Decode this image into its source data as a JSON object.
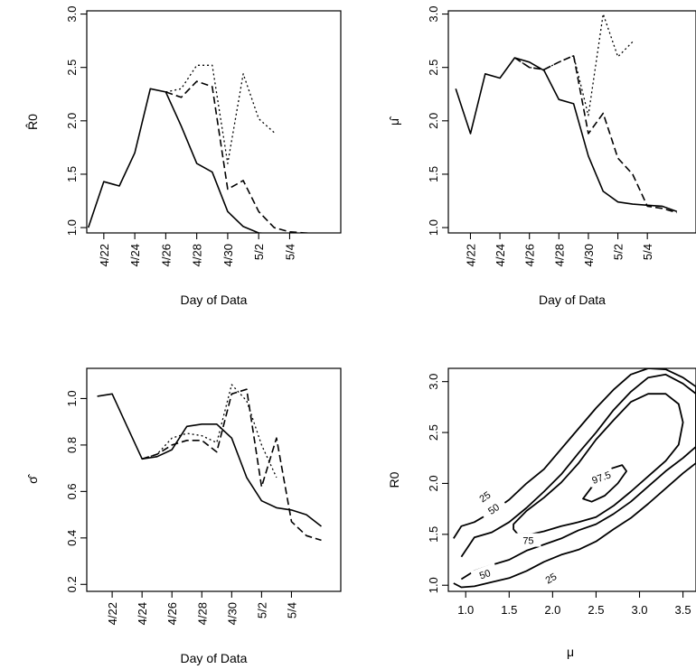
{
  "chart_data": [
    {
      "type": "line",
      "panel": "top-left",
      "ylabel": "R̂0",
      "xlabel": "Day of Data",
      "x_tick_labels": [
        "4/22",
        "4/24",
        "4/26",
        "4/28",
        "4/30",
        "5/2",
        "5/4"
      ],
      "x_tick_values": [
        1,
        3,
        5,
        7,
        9,
        11,
        13
      ],
      "y_ticks": [
        "1.0",
        "1.5",
        "2.0",
        "2.5",
        "3.0"
      ],
      "y_tick_values": [
        1.0,
        1.5,
        2.0,
        2.5,
        3.0
      ],
      "xlim": [
        -0.1,
        16.3
      ],
      "ylim": [
        0.95,
        3.03
      ],
      "series": [
        {
          "style": "solid",
          "x": [
            0,
            1,
            2,
            3,
            4,
            5,
            6,
            7,
            8,
            9,
            10,
            11,
            12,
            13,
            14,
            15
          ],
          "y": [
            1.0,
            1.43,
            1.39,
            1.7,
            2.3,
            2.27,
            1.95,
            1.6,
            1.52,
            1.15,
            1.01,
            0.95,
            0.94,
            0.94,
            0.94,
            0.94
          ]
        },
        {
          "style": "dashed",
          "x": [
            5,
            6,
            7,
            8,
            9,
            10,
            11,
            12,
            13,
            14,
            15
          ],
          "y": [
            2.27,
            2.22,
            2.37,
            2.32,
            1.36,
            1.44,
            1.15,
            1.0,
            0.96,
            0.95,
            0.94
          ]
        },
        {
          "style": "dotted",
          "x": [
            5,
            6,
            7,
            8,
            9,
            10,
            11,
            12
          ],
          "y": [
            2.27,
            2.3,
            2.52,
            2.52,
            1.6,
            2.44,
            2.02,
            1.89
          ]
        }
      ]
    },
    {
      "type": "line",
      "panel": "top-right",
      "ylabel": "μ̂",
      "xlabel": "Day of Data",
      "x_tick_labels": [
        "4/22",
        "4/24",
        "4/26",
        "4/28",
        "4/30",
        "5/2",
        "5/4"
      ],
      "x_tick_values": [
        1,
        3,
        5,
        7,
        9,
        11,
        13
      ],
      "y_ticks": [
        "1.0",
        "1.5",
        "2.0",
        "2.5",
        "3.0"
      ],
      "y_tick_values": [
        1.0,
        1.5,
        2.0,
        2.5,
        3.0
      ],
      "xlim": [
        -0.5,
        16.3
      ],
      "ylim": [
        0.95,
        3.03
      ],
      "series": [
        {
          "style": "solid",
          "x": [
            0,
            1,
            2,
            3,
            4,
            5,
            6,
            7,
            8,
            9,
            10,
            11,
            12,
            13,
            14,
            15
          ],
          "y": [
            2.3,
            1.88,
            2.44,
            2.4,
            2.59,
            2.55,
            2.47,
            2.2,
            2.16,
            1.67,
            1.34,
            1.24,
            1.22,
            1.21,
            1.2,
            1.15
          ]
        },
        {
          "style": "dashed",
          "x": [
            4,
            5,
            6,
            7,
            8,
            9,
            10,
            11,
            12,
            13,
            14,
            15
          ],
          "y": [
            2.59,
            2.5,
            2.48,
            2.55,
            2.61,
            1.88,
            2.07,
            1.65,
            1.5,
            1.2,
            1.18,
            1.14
          ]
        },
        {
          "style": "dotted",
          "x": [
            4,
            5,
            6,
            7,
            8,
            9,
            10,
            11,
            12
          ],
          "y": [
            2.59,
            2.5,
            2.48,
            2.55,
            2.61,
            2.05,
            3.0,
            2.6,
            2.74
          ]
        }
      ]
    },
    {
      "type": "line",
      "panel": "bottom-left",
      "ylabel": "σ̂",
      "xlabel": "Day of Data",
      "x_tick_labels": [
        "4/22",
        "4/24",
        "4/26",
        "4/28",
        "4/30",
        "5/2",
        "5/4"
      ],
      "x_tick_values": [
        1,
        3,
        5,
        7,
        9,
        11,
        13
      ],
      "y_ticks": [
        "0.2",
        "0.4",
        "0.6",
        "0.8",
        "1.0"
      ],
      "y_tick_values": [
        0.2,
        0.4,
        0.6,
        0.8,
        1.0
      ],
      "xlim": [
        -0.7,
        16.3
      ],
      "ylim": [
        0.17,
        1.13
      ],
      "series": [
        {
          "style": "solid",
          "x": [
            0,
            1,
            2,
            3,
            4,
            5,
            6,
            7,
            8,
            9,
            10,
            11,
            12,
            13,
            14,
            15
          ],
          "y": [
            1.01,
            1.02,
            0.88,
            0.74,
            0.75,
            0.78,
            0.88,
            0.89,
            0.89,
            0.83,
            0.66,
            0.56,
            0.53,
            0.52,
            0.5,
            0.45
          ]
        },
        {
          "style": "dashed",
          "x": [
            3,
            4,
            5,
            6,
            7,
            8,
            9,
            10,
            11,
            12,
            13,
            14,
            15
          ],
          "y": [
            0.74,
            0.76,
            0.8,
            0.82,
            0.82,
            0.77,
            1.02,
            1.04,
            0.62,
            0.83,
            0.47,
            0.41,
            0.39
          ]
        },
        {
          "style": "dotted",
          "x": [
            3,
            4,
            5,
            6,
            7,
            8,
            9,
            10,
            11,
            12
          ],
          "y": [
            0.74,
            0.76,
            0.83,
            0.85,
            0.84,
            0.81,
            1.06,
            0.99,
            0.8,
            0.66
          ]
        }
      ]
    },
    {
      "type": "contour",
      "panel": "bottom-right",
      "xlabel": "μ",
      "ylabel": "R0",
      "x_ticks": [
        "1.0",
        "1.5",
        "2.0",
        "2.5",
        "3.0",
        "3.5"
      ],
      "x_tick_values": [
        1.0,
        1.5,
        2.0,
        2.5,
        3.0,
        3.5
      ],
      "y_ticks": [
        "1.0",
        "1.5",
        "2.0",
        "2.5",
        "3.0"
      ],
      "y_tick_values": [
        1.0,
        1.5,
        2.0,
        2.5,
        3.0
      ],
      "xlim": [
        0.8,
        3.65
      ],
      "ylim": [
        0.94,
        3.13
      ],
      "levels": [
        {
          "label": "25",
          "x": [
            0.86,
            0.95,
            1.1,
            1.3,
            1.5,
            1.7,
            1.9,
            2.1,
            2.3,
            2.5,
            2.7,
            2.9,
            3.1,
            3.3,
            3.5,
            3.65,
            3.65,
            3.5,
            3.3,
            3.1,
            2.9,
            2.7,
            2.5,
            2.3,
            2.1,
            1.9,
            1.7,
            1.5,
            1.3,
            1.1,
            0.95,
            0.86
          ],
          "y": [
            1.46,
            1.58,
            1.62,
            1.72,
            1.84,
            2.0,
            2.14,
            2.34,
            2.54,
            2.74,
            2.92,
            3.07,
            3.13,
            3.12,
            3.04,
            2.95,
            2.2,
            2.1,
            1.95,
            1.8,
            1.66,
            1.55,
            1.43,
            1.35,
            1.3,
            1.23,
            1.14,
            1.07,
            1.03,
            0.99,
            0.98,
            1.02
          ]
        },
        {
          "label": "50",
          "x": [
            0.95,
            1.1,
            1.3,
            1.5,
            1.7,
            1.9,
            2.1,
            2.3,
            2.5,
            2.7,
            2.9,
            3.1,
            3.3,
            3.5,
            3.65,
            3.65,
            3.5,
            3.3,
            3.1,
            2.9,
            2.7,
            2.5,
            2.3,
            2.1,
            1.9,
            1.7,
            1.5,
            1.3,
            1.1,
            0.95
          ],
          "y": [
            1.28,
            1.47,
            1.52,
            1.62,
            1.76,
            1.92,
            2.09,
            2.3,
            2.5,
            2.72,
            2.9,
            3.04,
            3.07,
            2.98,
            2.88,
            2.36,
            2.25,
            2.12,
            1.97,
            1.82,
            1.7,
            1.6,
            1.54,
            1.46,
            1.4,
            1.34,
            1.25,
            1.2,
            1.14,
            1.06
          ]
        },
        {
          "label": "75",
          "x": [
            1.55,
            1.7,
            1.9,
            2.1,
            2.3,
            2.5,
            2.7,
            2.9,
            3.1,
            3.3,
            3.45,
            3.5,
            3.45,
            3.3,
            3.1,
            2.9,
            2.7,
            2.5,
            2.3,
            2.1,
            1.9,
            1.75,
            1.6,
            1.55
          ],
          "y": [
            1.6,
            1.73,
            1.86,
            2.01,
            2.2,
            2.43,
            2.62,
            2.8,
            2.88,
            2.88,
            2.78,
            2.6,
            2.38,
            2.22,
            2.07,
            1.92,
            1.78,
            1.67,
            1.62,
            1.58,
            1.53,
            1.5,
            1.5,
            1.55
          ]
        },
        {
          "label": "97.5",
          "x": [
            2.35,
            2.5,
            2.65,
            2.8,
            2.85,
            2.75,
            2.6,
            2.45,
            2.35
          ],
          "y": [
            1.85,
            2.02,
            2.14,
            2.18,
            2.12,
            2.0,
            1.88,
            1.82,
            1.85
          ]
        }
      ]
    }
  ]
}
